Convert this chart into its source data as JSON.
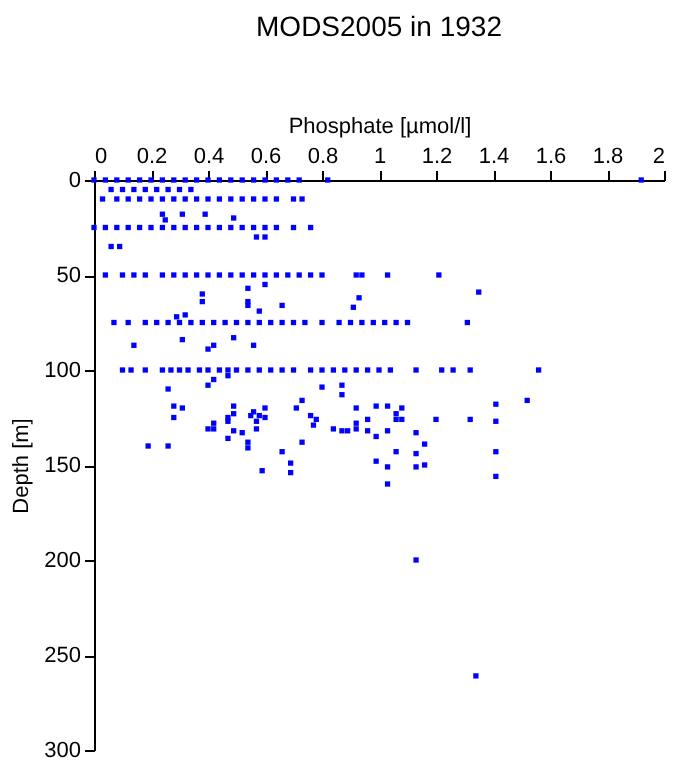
{
  "chart_data": {
    "type": "scatter",
    "title": "MODS2005 in 1932",
    "xlabel": "Phosphate [µmol/l]",
    "ylabel": "Depth [m]",
    "xlim": [
      0,
      2
    ],
    "xticks": [
      0,
      0.2,
      0.4,
      0.6,
      0.8,
      1,
      1.2,
      1.4,
      1.6,
      1.8,
      2
    ],
    "ylim": [
      300,
      0
    ],
    "yticks": [
      0,
      50,
      100,
      150,
      200,
      250,
      300
    ],
    "marker": "square",
    "series": [
      {
        "color": "#0000ff",
        "x": [
          0,
          0.04,
          0.08,
          0.12,
          0.16,
          0.2,
          0.24,
          0.28,
          0.32,
          0.36,
          0.4,
          0.44,
          0.48,
          0.52,
          0.56,
          0.6,
          0.64,
          0.68,
          0.72,
          0.82,
          1.92,
          0.06,
          0.1,
          0.14,
          0.18,
          0.22,
          0.26,
          0.3,
          0.34,
          0.03,
          0.08,
          0.12,
          0.16,
          0.2,
          0.24,
          0.28,
          0.32,
          0.36,
          0.4,
          0.44,
          0.48,
          0.52,
          0.56,
          0.6,
          0.64,
          0.7,
          0.73,
          0.24,
          0.31,
          0.39,
          0.49,
          0.25,
          0,
          0.04,
          0.08,
          0.12,
          0.16,
          0.2,
          0.24,
          0.28,
          0.32,
          0.36,
          0.4,
          0.44,
          0.48,
          0.52,
          0.56,
          0.6,
          0.64,
          0.7,
          0.76,
          0.57,
          0.6,
          0.06,
          0.09,
          0.04,
          0.1,
          0.14,
          0.18,
          0.24,
          0.28,
          0.32,
          0.36,
          0.4,
          0.44,
          0.48,
          0.52,
          0.56,
          0.6,
          0.64,
          0.68,
          0.72,
          0.76,
          0.8,
          0.92,
          0.94,
          1.03,
          1.21,
          0.6,
          0.38,
          0.54,
          0.93,
          1.35,
          0.38,
          0.54,
          0.54,
          0.66,
          0.91,
          0.58,
          0.29,
          0.32,
          0.07,
          0.12,
          0.18,
          0.22,
          0.26,
          0.3,
          0.34,
          0.38,
          0.42,
          0.46,
          0.5,
          0.54,
          0.58,
          0.62,
          0.66,
          0.7,
          0.74,
          0.8,
          0.86,
          0.9,
          0.94,
          0.98,
          1.02,
          1.06,
          1.1,
          1.31,
          0.14,
          0.31,
          0.4,
          0.42,
          0.49,
          0.56,
          0.1,
          0.13,
          0.18,
          0.24,
          0.27,
          0.3,
          0.33,
          0.37,
          0.4,
          0.44,
          0.47,
          0.5,
          0.54,
          0.58,
          0.62,
          0.66,
          0.7,
          0.76,
          0.8,
          0.84,
          0.88,
          0.92,
          0.96,
          1.0,
          1.04,
          1.13,
          1.22,
          1.26,
          1.32,
          1.56,
          0.26,
          0.4,
          0.42,
          0.47,
          0.8,
          0.87,
          0.87,
          0.28,
          0.31,
          0.28,
          0.4,
          0.42,
          0.42,
          0.47,
          0.47,
          0.47,
          0.49,
          0.49,
          0.49,
          0.52,
          0.55,
          0.56,
          0.57,
          0.57,
          0.58,
          0.54,
          0.54,
          0.6,
          0.6,
          0.59,
          0.66,
          0.69,
          0.69,
          0.71,
          0.73,
          0.73,
          0.76,
          0.77,
          0.78,
          0.84,
          0.87,
          0.89,
          0.92,
          0.92,
          0.92,
          0.96,
          0.96,
          0.99,
          0.99,
          0.99,
          1.03,
          1.03,
          1.03,
          1.03,
          1.06,
          1.06,
          1.06,
          1.08,
          1.08,
          1.13,
          1.13,
          1.13,
          1.13,
          1.16,
          1.16,
          1.2,
          1.32,
          1.41,
          1.41,
          1.41,
          1.41,
          1.52,
          1.34,
          0.19,
          0.26
        ],
        "values": [
          0,
          0,
          0,
          0,
          0,
          0,
          0,
          0,
          0,
          0,
          0,
          0,
          0,
          0,
          0,
          0,
          0,
          0,
          0,
          0,
          0,
          5,
          5,
          5,
          5,
          5,
          5,
          5,
          5,
          10,
          10,
          10,
          10,
          10,
          10,
          10,
          10,
          10,
          10,
          10,
          10,
          10,
          10,
          10,
          10,
          10,
          10,
          18,
          18,
          18,
          20,
          21,
          25,
          25,
          25,
          25,
          25,
          25,
          25,
          25,
          25,
          25,
          25,
          25,
          25,
          25,
          25,
          25,
          25,
          25,
          25,
          30,
          30,
          35,
          35,
          50,
          50,
          50,
          50,
          50,
          50,
          50,
          50,
          50,
          50,
          50,
          50,
          50,
          50,
          50,
          50,
          50,
          50,
          50,
          50,
          50,
          50,
          50,
          55,
          60,
          57,
          62,
          59,
          64,
          64,
          66,
          66,
          67,
          69,
          72,
          71,
          75,
          75,
          75,
          75,
          75,
          75,
          75,
          75,
          75,
          75,
          75,
          75,
          75,
          75,
          75,
          75,
          75,
          75,
          75,
          75,
          75,
          75,
          75,
          75,
          75,
          75,
          87,
          84,
          89,
          87,
          83,
          87,
          100,
          100,
          100,
          100,
          100,
          100,
          100,
          100,
          100,
          100,
          100,
          100,
          100,
          100,
          100,
          100,
          100,
          100,
          100,
          100,
          100,
          100,
          100,
          100,
          100,
          100,
          100,
          100,
          100,
          100,
          110,
          108,
          105,
          103,
          109,
          108,
          113,
          119,
          120,
          125,
          131,
          128,
          131,
          125,
          127,
          136,
          119,
          123,
          132,
          133,
          124,
          122,
          127,
          131,
          124,
          138,
          141,
          120,
          125,
          153,
          143,
          149,
          154,
          120,
          116,
          138,
          124,
          129,
          126,
          131,
          132,
          132,
          120,
          128,
          131,
          126,
          132,
          119,
          135,
          148,
          119,
          132,
          151,
          160,
          123,
          126,
          143,
          120,
          126,
          133,
          144,
          151,
          200,
          139,
          150,
          126,
          126,
          118,
          127,
          143,
          156,
          116,
          261,
          140,
          140
        ]
      }
    ]
  }
}
